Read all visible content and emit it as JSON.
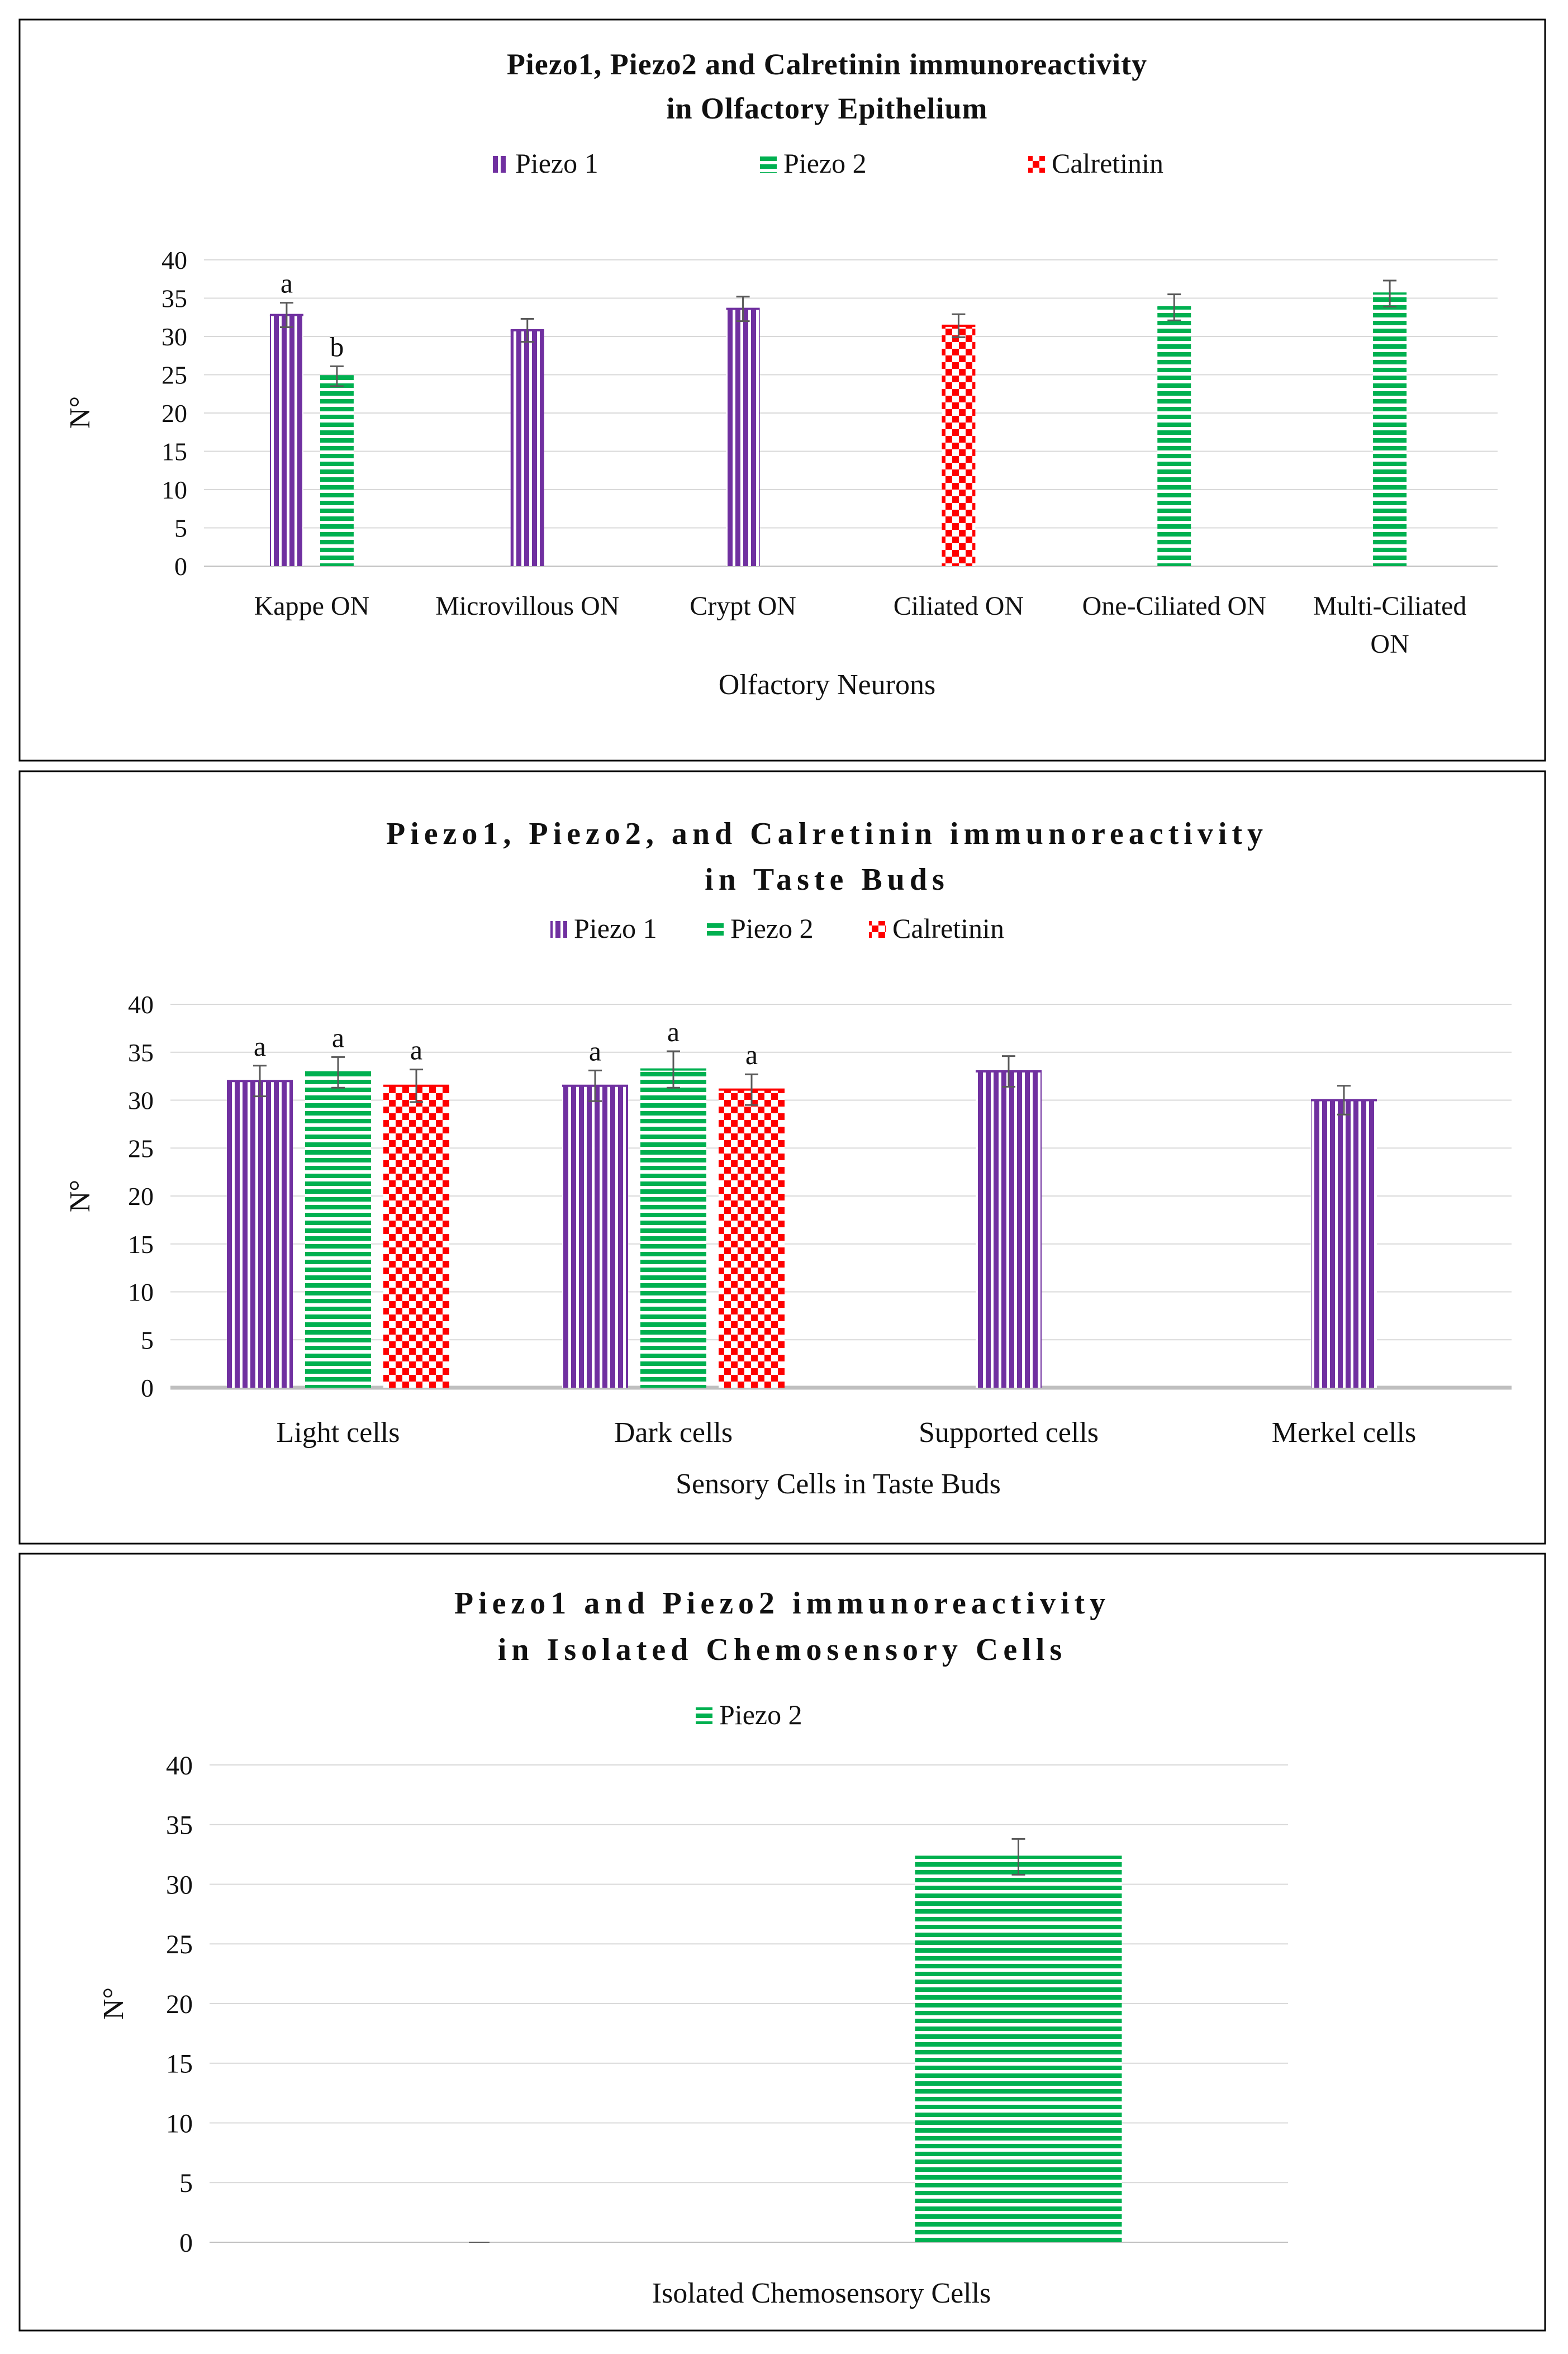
{
  "colors": {
    "piezo1": "#7030a0",
    "piezo2": "#00b050",
    "calretinin": "#ff0000",
    "grid": "#d9d9d9",
    "axis": "#bfbfbf",
    "error": "#595959",
    "frame": "#000000"
  },
  "chart_data": [
    {
      "type": "bar",
      "title": "Piezo1, Piezo2 and Calretinin immunoreactivity",
      "subtitle": "in Olfactory Epithelium",
      "xlabel": "Olfactory Neurons",
      "ylabel": "N°",
      "ylim": [
        0,
        40
      ],
      "yticks": [
        0,
        5,
        10,
        15,
        20,
        25,
        30,
        35,
        40
      ],
      "ytick_labels": [
        "0",
        "5",
        "10",
        "15",
        "20",
        "25",
        "30",
        "35",
        "40"
      ],
      "grid": true,
      "legend_position": "top",
      "categories": [
        [
          "Kappe ON"
        ],
        [
          "Microvillous ON"
        ],
        [
          "Crypt ON"
        ],
        [
          "Ciliated ON"
        ],
        [
          "One-Ciliated ON"
        ],
        [
          "Multi-Ciliated",
          "ON"
        ]
      ],
      "series": [
        {
          "name": "Piezo 1",
          "key": "piezo1",
          "pattern": "vertical",
          "values": [
            32.8,
            30.8,
            33.6,
            null,
            null,
            null
          ],
          "errors": [
            1.6,
            1.5,
            1.6,
            null,
            null,
            null
          ],
          "labels": [
            "a",
            "",
            "",
            "",
            "",
            ""
          ]
        },
        {
          "name": "Piezo 2",
          "key": "piezo2",
          "pattern": "horizontal",
          "values": [
            24.8,
            null,
            null,
            null,
            33.8,
            35.6
          ],
          "errors": [
            1.3,
            null,
            null,
            null,
            1.7,
            1.7
          ],
          "labels": [
            "b",
            "",
            "",
            "",
            "",
            ""
          ]
        },
        {
          "name": "Calretinin",
          "key": "calretinin",
          "pattern": "checker",
          "values": [
            null,
            null,
            null,
            31.4,
            null,
            null
          ],
          "errors": [
            null,
            null,
            null,
            1.5,
            null,
            null
          ],
          "labels": [
            "",
            "",
            "",
            "",
            "",
            ""
          ]
        }
      ]
    },
    {
      "type": "bar",
      "title": "Piezo1, Piezo2, and Calretinin immunoreactivity",
      "subtitle": "in Taste Buds",
      "xlabel": "Sensory Cells in  Taste Buds",
      "ylabel": "N°",
      "ylim": [
        0,
        40
      ],
      "yticks": [
        0,
        5,
        10,
        15,
        20,
        25,
        30,
        35,
        40
      ],
      "ytick_labels": [
        "0",
        "5",
        "10",
        "15",
        "20",
        "25",
        "30",
        "35",
        "40"
      ],
      "grid": true,
      "legend_position": "top",
      "categories": [
        [
          "Light cells"
        ],
        [
          "Dark cells"
        ],
        [
          "Supported cells"
        ],
        [
          "Merkel cells"
        ]
      ],
      "series": [
        {
          "name": "Piezo 1",
          "key": "piezo1",
          "pattern": "vertical",
          "values": [
            32.0,
            31.5,
            33.0,
            30.0
          ],
          "errors": [
            1.6,
            1.6,
            1.6,
            1.5
          ],
          "labels": [
            "a",
            "a",
            "",
            ""
          ]
        },
        {
          "name": "Piezo 2",
          "key": "piezo2",
          "pattern": "horizontal",
          "values": [
            32.9,
            33.2,
            null,
            null
          ],
          "errors": [
            1.6,
            1.9,
            null,
            null
          ],
          "labels": [
            "a",
            "a",
            "",
            ""
          ]
        },
        {
          "name": "Calretinin",
          "key": "calretinin",
          "pattern": "checker",
          "values": [
            31.5,
            31.1,
            null,
            null
          ],
          "errors": [
            1.7,
            1.6,
            null,
            null
          ],
          "labels": [
            "a",
            "a",
            "",
            ""
          ]
        }
      ]
    },
    {
      "type": "bar",
      "title": "Piezo1 and Piezo2 immunoreactivity",
      "subtitle": "in Isolated Chemosensory Cells",
      "xlabel": "Isolated Chemosensory Cells",
      "ylabel": "N°",
      "ylim": [
        0,
        40
      ],
      "yticks": [
        0,
        5,
        10,
        15,
        20,
        25,
        30,
        35,
        40
      ],
      "ytick_labels": [
        "0",
        "5",
        "10",
        "15",
        "20",
        "25",
        "30",
        "35",
        "40"
      ],
      "grid": true,
      "legend_position": "top",
      "categories": [
        [
          ""
        ],
        [
          ""
        ]
      ],
      "series": [
        {
          "name": "Piezo 1",
          "key": "piezo1",
          "pattern": "vertical",
          "legend": false,
          "values": [
            0,
            null
          ],
          "errors": [
            null,
            null
          ],
          "labels": [
            "",
            ""
          ]
        },
        {
          "name": "Piezo 2",
          "key": "piezo2",
          "pattern": "horizontal",
          "values": [
            null,
            32.3
          ],
          "errors": [
            null,
            1.5
          ],
          "labels": [
            "",
            ""
          ]
        }
      ]
    }
  ]
}
